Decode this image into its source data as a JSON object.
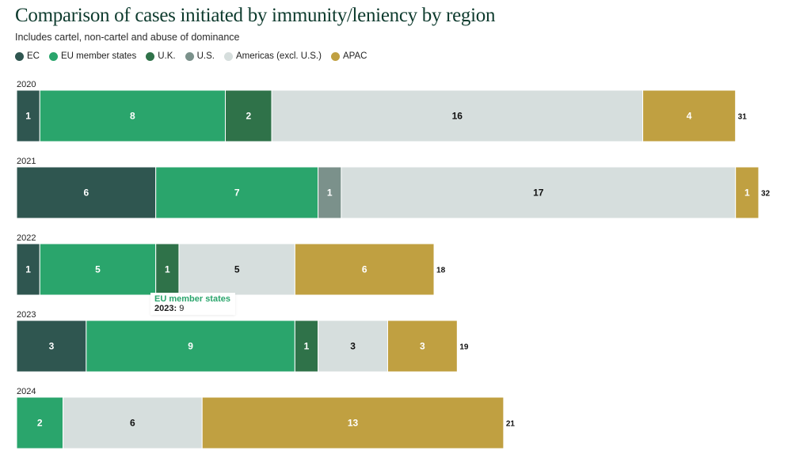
{
  "header": {
    "title": "Comparison of cases initiated by immunity/leniency by region",
    "subtitle": "Includes cartel, non-cartel and abuse of dominance"
  },
  "chart_data": {
    "type": "bar",
    "orientation": "horizontal-stacked",
    "title": "Comparison of cases initiated by immunity/leniency by region",
    "subtitle": "Includes cartel, non-cartel and abuse of dominance",
    "categories": [
      "2020",
      "2021",
      "2022",
      "2023",
      "2024"
    ],
    "xlim": [
      0,
      32
    ],
    "grid": false,
    "legend_position": "top-left",
    "series": [
      {
        "name": "EC",
        "color": "#2f5650",
        "label_color": "#ffffff",
        "values": [
          1,
          6,
          1,
          3,
          0
        ]
      },
      {
        "name": "EU member states",
        "color": "#2aa56c",
        "label_color": "#ffffff",
        "values": [
          8,
          7,
          5,
          9,
          2
        ]
      },
      {
        "name": "U.K.",
        "color": "#2f7249",
        "label_color": "#ffffff",
        "values": [
          2,
          0,
          1,
          1,
          0
        ]
      },
      {
        "name": "U.S.",
        "color": "#7b918b",
        "label_color": "#ffffff",
        "values": [
          0,
          1,
          0,
          0,
          0
        ]
      },
      {
        "name": "Americas (excl. U.S.)",
        "color": "#d6dedd",
        "label_color": "#111111",
        "values": [
          16,
          17,
          5,
          3,
          6
        ]
      },
      {
        "name": "APAC",
        "color": "#c0a041",
        "label_color": "#ffffff",
        "values": [
          4,
          1,
          6,
          3,
          13
        ]
      }
    ],
    "totals": [
      31,
      32,
      18,
      19,
      21
    ]
  },
  "tooltip": {
    "series": "EU member states",
    "year_label": "2023:",
    "value": "9"
  }
}
